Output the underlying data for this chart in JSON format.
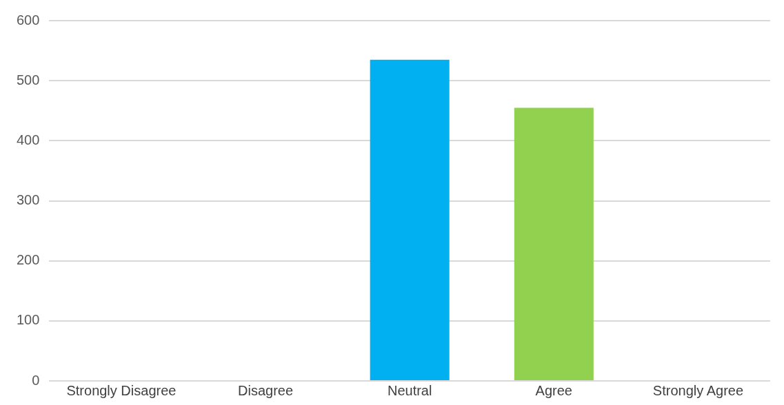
{
  "chart_data": {
    "type": "bar",
    "categories": [
      "Strongly Disagree",
      "Disagree",
      "Neutral",
      "Agree",
      "Strongly Agree"
    ],
    "values": [
      0,
      0,
      535,
      455,
      0
    ],
    "colors": [
      "#c00000",
      "#c89800",
      "#00b0f0",
      "#92d050",
      "#002060"
    ],
    "ylim": [
      0,
      600
    ],
    "yticks": [
      0,
      100,
      200,
      300,
      400,
      500,
      600
    ],
    "grid": "y",
    "legend": false
  }
}
